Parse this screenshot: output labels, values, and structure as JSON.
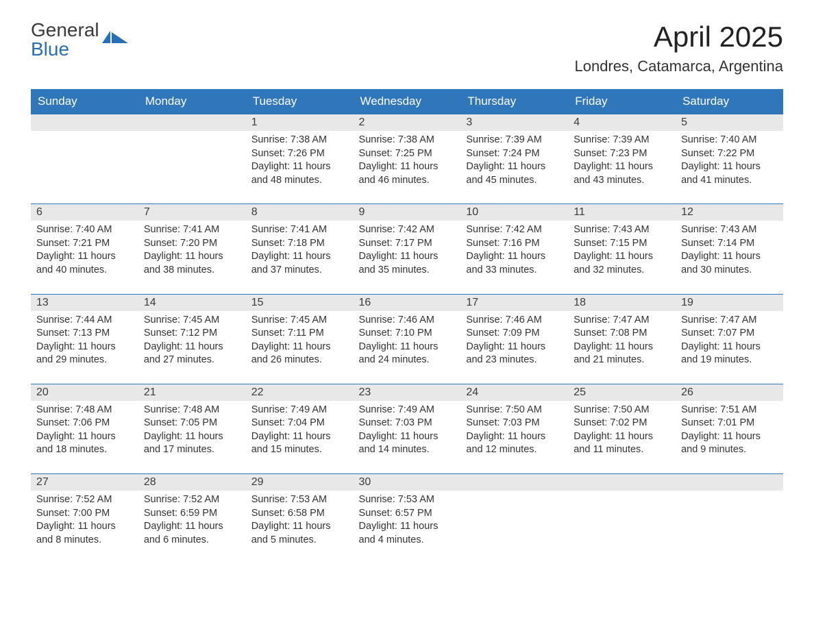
{
  "logo": {
    "top": "General",
    "bottom": "Blue",
    "icon_color": "#2770b8"
  },
  "title": "April 2025",
  "location": "Londres, Catamarca, Argentina",
  "colors": {
    "header_bg": "#2f76bb",
    "header_text": "#ffffff",
    "daynum_bg": "#e8e8e8",
    "text": "#333333",
    "row_border": "#2f76bb"
  },
  "day_names": [
    "Sunday",
    "Monday",
    "Tuesday",
    "Wednesday",
    "Thursday",
    "Friday",
    "Saturday"
  ],
  "weeks": [
    [
      null,
      null,
      {
        "n": "1",
        "sr": "Sunrise: 7:38 AM",
        "ss": "Sunset: 7:26 PM",
        "d1": "Daylight: 11 hours",
        "d2": "and 48 minutes."
      },
      {
        "n": "2",
        "sr": "Sunrise: 7:38 AM",
        "ss": "Sunset: 7:25 PM",
        "d1": "Daylight: 11 hours",
        "d2": "and 46 minutes."
      },
      {
        "n": "3",
        "sr": "Sunrise: 7:39 AM",
        "ss": "Sunset: 7:24 PM",
        "d1": "Daylight: 11 hours",
        "d2": "and 45 minutes."
      },
      {
        "n": "4",
        "sr": "Sunrise: 7:39 AM",
        "ss": "Sunset: 7:23 PM",
        "d1": "Daylight: 11 hours",
        "d2": "and 43 minutes."
      },
      {
        "n": "5",
        "sr": "Sunrise: 7:40 AM",
        "ss": "Sunset: 7:22 PM",
        "d1": "Daylight: 11 hours",
        "d2": "and 41 minutes."
      }
    ],
    [
      {
        "n": "6",
        "sr": "Sunrise: 7:40 AM",
        "ss": "Sunset: 7:21 PM",
        "d1": "Daylight: 11 hours",
        "d2": "and 40 minutes."
      },
      {
        "n": "7",
        "sr": "Sunrise: 7:41 AM",
        "ss": "Sunset: 7:20 PM",
        "d1": "Daylight: 11 hours",
        "d2": "and 38 minutes."
      },
      {
        "n": "8",
        "sr": "Sunrise: 7:41 AM",
        "ss": "Sunset: 7:18 PM",
        "d1": "Daylight: 11 hours",
        "d2": "and 37 minutes."
      },
      {
        "n": "9",
        "sr": "Sunrise: 7:42 AM",
        "ss": "Sunset: 7:17 PM",
        "d1": "Daylight: 11 hours",
        "d2": "and 35 minutes."
      },
      {
        "n": "10",
        "sr": "Sunrise: 7:42 AM",
        "ss": "Sunset: 7:16 PM",
        "d1": "Daylight: 11 hours",
        "d2": "and 33 minutes."
      },
      {
        "n": "11",
        "sr": "Sunrise: 7:43 AM",
        "ss": "Sunset: 7:15 PM",
        "d1": "Daylight: 11 hours",
        "d2": "and 32 minutes."
      },
      {
        "n": "12",
        "sr": "Sunrise: 7:43 AM",
        "ss": "Sunset: 7:14 PM",
        "d1": "Daylight: 11 hours",
        "d2": "and 30 minutes."
      }
    ],
    [
      {
        "n": "13",
        "sr": "Sunrise: 7:44 AM",
        "ss": "Sunset: 7:13 PM",
        "d1": "Daylight: 11 hours",
        "d2": "and 29 minutes."
      },
      {
        "n": "14",
        "sr": "Sunrise: 7:45 AM",
        "ss": "Sunset: 7:12 PM",
        "d1": "Daylight: 11 hours",
        "d2": "and 27 minutes."
      },
      {
        "n": "15",
        "sr": "Sunrise: 7:45 AM",
        "ss": "Sunset: 7:11 PM",
        "d1": "Daylight: 11 hours",
        "d2": "and 26 minutes."
      },
      {
        "n": "16",
        "sr": "Sunrise: 7:46 AM",
        "ss": "Sunset: 7:10 PM",
        "d1": "Daylight: 11 hours",
        "d2": "and 24 minutes."
      },
      {
        "n": "17",
        "sr": "Sunrise: 7:46 AM",
        "ss": "Sunset: 7:09 PM",
        "d1": "Daylight: 11 hours",
        "d2": "and 23 minutes."
      },
      {
        "n": "18",
        "sr": "Sunrise: 7:47 AM",
        "ss": "Sunset: 7:08 PM",
        "d1": "Daylight: 11 hours",
        "d2": "and 21 minutes."
      },
      {
        "n": "19",
        "sr": "Sunrise: 7:47 AM",
        "ss": "Sunset: 7:07 PM",
        "d1": "Daylight: 11 hours",
        "d2": "and 19 minutes."
      }
    ],
    [
      {
        "n": "20",
        "sr": "Sunrise: 7:48 AM",
        "ss": "Sunset: 7:06 PM",
        "d1": "Daylight: 11 hours",
        "d2": "and 18 minutes."
      },
      {
        "n": "21",
        "sr": "Sunrise: 7:48 AM",
        "ss": "Sunset: 7:05 PM",
        "d1": "Daylight: 11 hours",
        "d2": "and 17 minutes."
      },
      {
        "n": "22",
        "sr": "Sunrise: 7:49 AM",
        "ss": "Sunset: 7:04 PM",
        "d1": "Daylight: 11 hours",
        "d2": "and 15 minutes."
      },
      {
        "n": "23",
        "sr": "Sunrise: 7:49 AM",
        "ss": "Sunset: 7:03 PM",
        "d1": "Daylight: 11 hours",
        "d2": "and 14 minutes."
      },
      {
        "n": "24",
        "sr": "Sunrise: 7:50 AM",
        "ss": "Sunset: 7:03 PM",
        "d1": "Daylight: 11 hours",
        "d2": "and 12 minutes."
      },
      {
        "n": "25",
        "sr": "Sunrise: 7:50 AM",
        "ss": "Sunset: 7:02 PM",
        "d1": "Daylight: 11 hours",
        "d2": "and 11 minutes."
      },
      {
        "n": "26",
        "sr": "Sunrise: 7:51 AM",
        "ss": "Sunset: 7:01 PM",
        "d1": "Daylight: 11 hours",
        "d2": "and 9 minutes."
      }
    ],
    [
      {
        "n": "27",
        "sr": "Sunrise: 7:52 AM",
        "ss": "Sunset: 7:00 PM",
        "d1": "Daylight: 11 hours",
        "d2": "and 8 minutes."
      },
      {
        "n": "28",
        "sr": "Sunrise: 7:52 AM",
        "ss": "Sunset: 6:59 PM",
        "d1": "Daylight: 11 hours",
        "d2": "and 6 minutes."
      },
      {
        "n": "29",
        "sr": "Sunrise: 7:53 AM",
        "ss": "Sunset: 6:58 PM",
        "d1": "Daylight: 11 hours",
        "d2": "and 5 minutes."
      },
      {
        "n": "30",
        "sr": "Sunrise: 7:53 AM",
        "ss": "Sunset: 6:57 PM",
        "d1": "Daylight: 11 hours",
        "d2": "and 4 minutes."
      },
      null,
      null,
      null
    ]
  ]
}
